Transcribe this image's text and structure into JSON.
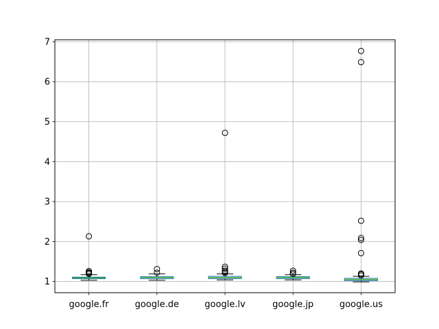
{
  "chart_data": {
    "type": "boxplot",
    "title": "",
    "xlabel": "",
    "ylabel": "",
    "ylim": [
      0.72,
      7.05
    ],
    "yticks": [
      1,
      2,
      3,
      4,
      5,
      6,
      7
    ],
    "grid": true,
    "categories": [
      "google.fr",
      "google.de",
      "google.lv",
      "google.jp",
      "google.us"
    ],
    "boxes": [
      {
        "name": "google.fr",
        "whisker_low": 1.03,
        "q1": 1.07,
        "median": 1.09,
        "q3": 1.11,
        "whisker_high": 1.17,
        "outliers": [
          1.19,
          1.21,
          1.23,
          1.26,
          2.13
        ]
      },
      {
        "name": "google.de",
        "whisker_low": 1.03,
        "q1": 1.07,
        "median": 1.1,
        "q3": 1.12,
        "whisker_high": 1.19,
        "outliers": [
          1.22,
          1.31
        ]
      },
      {
        "name": "google.lv",
        "whisker_low": 1.04,
        "q1": 1.07,
        "median": 1.1,
        "q3": 1.13,
        "whisker_high": 1.19,
        "outliers": [
          1.21,
          1.24,
          1.27,
          1.32,
          1.37,
          4.72
        ]
      },
      {
        "name": "google.jp",
        "whisker_low": 1.04,
        "q1": 1.07,
        "median": 1.1,
        "q3": 1.12,
        "whisker_high": 1.17,
        "outliers": [
          1.19,
          1.22,
          1.27
        ]
      },
      {
        "name": "google.us",
        "whisker_low": 0.99,
        "q1": 1.02,
        "median": 1.05,
        "q3": 1.08,
        "whisker_high": 1.13,
        "outliers": [
          1.15,
          1.18,
          1.2,
          1.71,
          2.04,
          2.09,
          2.52,
          6.49,
          6.77
        ]
      }
    ],
    "colors": {
      "box": "#1f77b4",
      "median": "#2ca02c",
      "whisker": "#000000",
      "outlier": "#000000",
      "grid": "#b0b0b0"
    }
  }
}
